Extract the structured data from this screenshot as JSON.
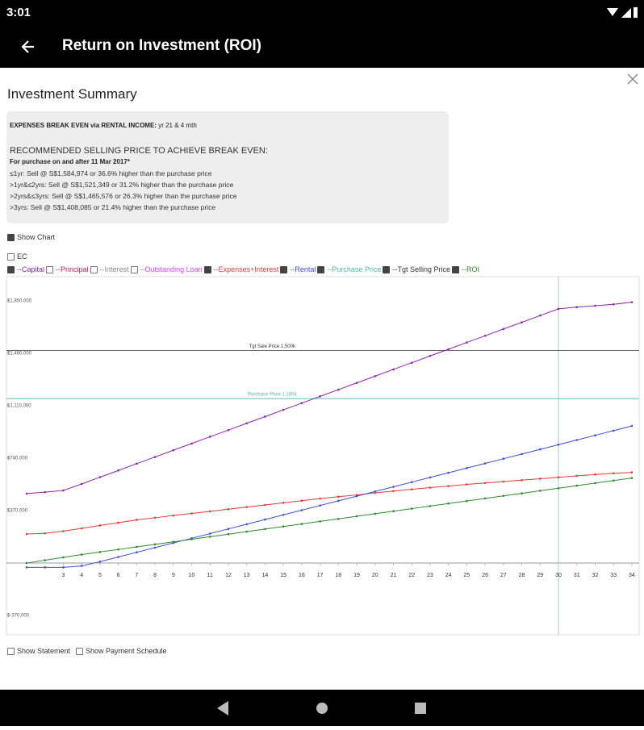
{
  "status_bar": {
    "time": "3:01"
  },
  "app_bar": {
    "title": "Return on Investment (ROI)"
  },
  "summary": {
    "title": "Investment Summary",
    "break_even_label": "EXPENSES BREAK EVEN via RENTAL INCOME:",
    "break_even_value": " yr 21 & 4 mth",
    "recommend_heading": "RECOMMENDED SELLING PRICE TO ACHIEVE BREAK EVEN:",
    "recommend_note": "For purchase on and after 11 Mar 2017*",
    "lines": [
      "≤1yr: Sell @ S$1,584,974 or 36.6% higher than the purchase price",
      ">1yr&≤2yrs: Sell @ S$1,521,349 or 31.2% higher than the purchase price",
      ">2yrs&≤3yrs: Sell @ S$1,465,576 or 26.3% higher than the purchase price",
      ">3yrs: Sell @ S$1,408,085 or 21.4% higher than the purchase price"
    ]
  },
  "options": {
    "show_chart": {
      "label": "Show Chart",
      "checked": true
    },
    "ec": {
      "label": "EC",
      "checked": false
    },
    "show_statement": {
      "label": "Show Statement",
      "checked": false
    },
    "show_payment_schedule": {
      "label": "Show Payment Schedule",
      "checked": false
    }
  },
  "chart_data": {
    "type": "line",
    "x": [
      1,
      2,
      3,
      4,
      5,
      6,
      7,
      8,
      9,
      10,
      11,
      12,
      13,
      14,
      15,
      16,
      17,
      18,
      19,
      20,
      21,
      22,
      23,
      24,
      25,
      26,
      27,
      28,
      29,
      30,
      31,
      32,
      33,
      34
    ],
    "xlim": [
      -0.1,
      34.4
    ],
    "xticks": [
      3,
      4,
      5,
      6,
      7,
      8,
      9,
      10,
      11,
      12,
      13,
      14,
      15,
      16,
      17,
      18,
      19,
      20,
      21,
      22,
      23,
      24,
      25,
      26,
      27,
      28,
      29,
      30,
      31,
      32,
      33,
      34
    ],
    "ylim": [
      -506000,
      2020000
    ],
    "yticks": [
      {
        "value": -370000,
        "label": "$-370,000"
      },
      {
        "value": 370000,
        "label": "$370,000"
      },
      {
        "value": 740000,
        "label": "$740,000"
      },
      {
        "value": 1110000,
        "label": "$1,110,000"
      },
      {
        "value": 1480000,
        "label": "$1,480,000"
      },
      {
        "value": 1850000,
        "label": "$1,850,000"
      }
    ],
    "series": [
      {
        "name": "--Capital",
        "color": "#8e24aa",
        "checked": true,
        "values": [
          490000,
          500000,
          512000,
          558000,
          606000,
          653000,
          701000,
          748000,
          796000,
          843000,
          891000,
          938000,
          986000,
          1033000,
          1081000,
          1128000,
          1176000,
          1223000,
          1271000,
          1318000,
          1366000,
          1413000,
          1461000,
          1508000,
          1556000,
          1603000,
          1651000,
          1698000,
          1746000,
          1793000,
          1805000,
          1815000,
          1825000,
          1840000
        ]
      },
      {
        "name": "--Expenses+Interest",
        "color": "#e53935",
        "checked": true,
        "values": [
          205000,
          210000,
          225000,
          245000,
          265000,
          285000,
          305000,
          320000,
          335000,
          350000,
          365000,
          380000,
          395000,
          410000,
          425000,
          440000,
          455000,
          468000,
          480000,
          495000,
          508000,
          520000,
          532000,
          543000,
          555000,
          565000,
          575000,
          585000,
          595000,
          605000,
          615000,
          625000,
          633000,
          640000
        ]
      },
      {
        "name": "--Rental",
        "color": "#3d4fd6",
        "checked": true,
        "values": [
          -30000,
          -30000,
          -30000,
          -20000,
          10000,
          43000,
          76000,
          109000,
          142000,
          175000,
          208000,
          241000,
          274000,
          307000,
          340000,
          373000,
          406000,
          439000,
          472000,
          505000,
          538000,
          571000,
          604000,
          637000,
          670000,
          703000,
          736000,
          769000,
          802000,
          835000,
          868000,
          901000,
          934000,
          967000
        ]
      },
      {
        "name": "--ROI",
        "color": "#2e8b2e",
        "checked": true,
        "values": [
          0,
          20000,
          40000,
          60000,
          78000,
          96000,
          114000,
          132000,
          150000,
          168000,
          186000,
          204000,
          222000,
          240000,
          258000,
          276000,
          294000,
          312000,
          330000,
          348000,
          366000,
          384000,
          402000,
          420000,
          438000,
          456000,
          474000,
          492000,
          510000,
          528000,
          546000,
          564000,
          582000,
          600000
        ]
      }
    ],
    "hidden_series": [
      {
        "name": "--Principal",
        "color": "#c2185b",
        "checked": false
      },
      {
        "name": "--Interest",
        "color": "#888888",
        "checked": false
      },
      {
        "name": "--Outstanding Loan",
        "color": "#e040fb",
        "checked": false
      }
    ],
    "reference_lines": [
      {
        "name": "--Purchase Price",
        "label": "Purchase Price 1,160k",
        "value": 1160000,
        "color": "#4db6ac",
        "checked": true
      },
      {
        "name": "--Tgt Selling Price",
        "label": "Tgt Sale Price 1,500k",
        "value": 1500000,
        "color": "#333333",
        "checked": true
      }
    ],
    "vline": {
      "x": 30,
      "color": "#a5d6a7"
    }
  }
}
